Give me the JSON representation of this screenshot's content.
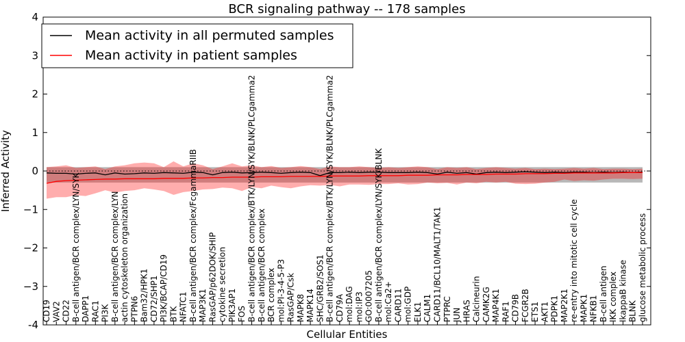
{
  "chart_data": {
    "type": "line",
    "title": "BCR signaling pathway -- 178 samples",
    "xlabel": "Cellular Entities",
    "ylabel": "Inferred Activity",
    "ylim": [
      -4,
      4
    ],
    "yticks": [
      "-4",
      "−3",
      "−2",
      "−1",
      "0",
      "1",
      "2",
      "3",
      "4"
    ],
    "grid": false,
    "legend": {
      "placement": "top-left",
      "entries": [
        {
          "label": "Mean activity in all permuted samples",
          "color": "#000000"
        },
        {
          "label": "Mean activity in patient samples",
          "color": "#ff0000"
        }
      ]
    },
    "categories": [
      "CD19",
      "VAV2",
      "CD22",
      "B-cell antigen/BCR complex/LYN/SYK",
      "DAPP1",
      "RAC1",
      "PI3K",
      "B-cell antigen/BCR complex/LYN",
      "actin cytoskeleton organization",
      "PTPN6",
      "Bam32/HPK1",
      "CD72/SHP1",
      "PI3K/BCAP/CD19",
      "BTK",
      "NFATC1",
      "B-cell antigen/BCR complex/FcgammaRIIB",
      "MAP3K1",
      "RasGAP/p62DOK/SHIP",
      "cytokine secretion",
      "PIK3AP1",
      "FOS",
      "B-cell antigen/BCR complex/BTK/LYN/SYK/BLNK/PLCgamma2",
      "B-cell antigen/BCR complex",
      "BCR complex",
      "mol:PI-3-4-5-P3",
      "RasGAP/Csk",
      "MAPK8",
      "MAPK14",
      "SHC/GRB2/SOS1",
      "B-cell antigen/BCR complex/BTK/LYN/SYK/BLNK/PLCgamma2",
      "CD79A",
      "mol:DAG",
      "mol:IP3",
      "GO:0007205",
      "B-cell antigen/BCR complex/LYN/SYK/BLNK",
      "mol:Ca2+",
      "CARD11",
      "mol:GDP",
      "ELK1",
      "CALM1",
      "CARD11/BCL10/MALT1/TAK1",
      "PTPRC",
      "JUN",
      "HRAS",
      "Calcineurin",
      "CAMK2G",
      "MAP4K1",
      "RAF1",
      "CD79B",
      "FCGR2B",
      "ETS1",
      "AKT1",
      "PDPK1",
      "MAP2K1",
      "re-entry into mitotic cell cycle",
      "MAPK1",
      "NFKB1",
      "B-cell antigen",
      "IKK complex",
      "IkappaB kinase",
      "BLNK",
      "glucose metabolic process"
    ],
    "series": [
      {
        "name": "Mean activity in all permuted samples",
        "color": "#000000",
        "values": [
          -0.05,
          -0.06,
          -0.06,
          -0.08,
          -0.06,
          -0.05,
          -0.1,
          -0.05,
          -0.08,
          -0.07,
          -0.05,
          -0.06,
          -0.04,
          -0.05,
          -0.06,
          -0.03,
          -0.04,
          -0.1,
          -0.04,
          -0.03,
          -0.05,
          -0.04,
          -0.03,
          -0.04,
          -0.06,
          -0.04,
          -0.03,
          -0.04,
          -0.12,
          -0.04,
          -0.04,
          -0.03,
          -0.04,
          -0.03,
          -0.03,
          -0.04,
          -0.04,
          -0.04,
          -0.03,
          -0.04,
          -0.08,
          -0.03,
          -0.06,
          -0.04,
          -0.08,
          -0.04,
          -0.03,
          -0.04,
          -0.03,
          -0.02,
          -0.03,
          -0.04,
          -0.03,
          -0.04,
          -0.03,
          -0.03,
          -0.04,
          -0.03,
          -0.04,
          -0.03,
          -0.04,
          -0.03
        ],
        "band_low": [
          -0.3,
          -0.3,
          -0.3,
          -0.3,
          -0.3,
          -0.3,
          -0.3,
          -0.3,
          -0.3,
          -0.3,
          -0.3,
          -0.3,
          -0.3,
          -0.3,
          -0.3,
          -0.3,
          -0.3,
          -0.3,
          -0.3,
          -0.3,
          -0.3,
          -0.3,
          -0.3,
          -0.3,
          -0.3,
          -0.3,
          -0.3,
          -0.3,
          -0.3,
          -0.3,
          -0.3,
          -0.3,
          -0.3,
          -0.3,
          -0.3,
          -0.3,
          -0.3,
          -0.3,
          -0.3,
          -0.3,
          -0.3,
          -0.3,
          -0.3,
          -0.3,
          -0.3,
          -0.3,
          -0.3,
          -0.3,
          -0.3,
          -0.3,
          -0.3,
          -0.3,
          -0.3,
          -0.3,
          -0.3,
          -0.3,
          -0.3,
          -0.3,
          -0.3,
          -0.3,
          -0.3,
          -0.3
        ],
        "band_high": [
          0.1,
          0.1,
          0.1,
          0.1,
          0.1,
          0.1,
          0.1,
          0.1,
          0.1,
          0.1,
          0.1,
          0.1,
          0.1,
          0.1,
          0.1,
          0.1,
          0.1,
          0.1,
          0.1,
          0.1,
          0.1,
          0.1,
          0.1,
          0.1,
          0.1,
          0.1,
          0.1,
          0.1,
          0.1,
          0.1,
          0.1,
          0.1,
          0.1,
          0.1,
          0.1,
          0.1,
          0.1,
          0.1,
          0.1,
          0.1,
          0.1,
          0.1,
          0.1,
          0.1,
          0.1,
          0.1,
          0.1,
          0.1,
          0.1,
          0.1,
          0.1,
          0.1,
          0.1,
          0.1,
          0.1,
          0.1,
          0.1,
          0.1,
          0.1,
          0.1,
          0.1,
          0.1
        ]
      },
      {
        "name": "Mean activity in patient samples",
        "color": "#ff0000",
        "values": [
          -0.32,
          -0.27,
          -0.25,
          -0.24,
          -0.23,
          -0.22,
          -0.21,
          -0.21,
          -0.2,
          -0.2,
          -0.2,
          -0.2,
          -0.19,
          -0.19,
          -0.19,
          -0.18,
          -0.18,
          -0.17,
          -0.17,
          -0.16,
          -0.16,
          -0.16,
          -0.15,
          -0.15,
          -0.15,
          -0.14,
          -0.14,
          -0.14,
          -0.14,
          -0.13,
          -0.13,
          -0.13,
          -0.13,
          -0.12,
          -0.12,
          -0.12,
          -0.12,
          -0.11,
          -0.11,
          -0.11,
          -0.1,
          -0.1,
          -0.1,
          -0.09,
          -0.09,
          -0.09,
          -0.08,
          -0.08,
          -0.08,
          -0.07,
          -0.07,
          -0.07,
          -0.06,
          -0.06,
          -0.05,
          -0.05,
          -0.05,
          -0.05,
          -0.05,
          -0.04,
          -0.04,
          -0.04
        ],
        "band_low": [
          -0.72,
          -0.68,
          -0.68,
          -0.63,
          -0.65,
          -0.58,
          -0.5,
          -0.56,
          -0.52,
          -0.5,
          -0.45,
          -0.48,
          -0.52,
          -0.62,
          -0.55,
          -0.52,
          -0.48,
          -0.47,
          -0.43,
          -0.45,
          -0.52,
          -0.42,
          -0.45,
          -0.38,
          -0.42,
          -0.45,
          -0.4,
          -0.37,
          -0.38,
          -0.36,
          -0.4,
          -0.35,
          -0.35,
          -0.36,
          -0.34,
          -0.34,
          -0.32,
          -0.35,
          -0.34,
          -0.3,
          -0.32,
          -0.31,
          -0.35,
          -0.3,
          -0.32,
          -0.28,
          -0.3,
          -0.28,
          -0.33,
          -0.34,
          -0.33,
          -0.3,
          -0.28,
          -0.22,
          -0.26,
          -0.24,
          -0.25,
          -0.22,
          -0.2,
          -0.2,
          -0.21,
          -0.2
        ],
        "band_high": [
          0.1,
          0.12,
          0.15,
          0.08,
          0.1,
          0.12,
          0.05,
          0.12,
          0.15,
          0.2,
          0.22,
          0.2,
          0.1,
          0.25,
          0.12,
          0.2,
          0.15,
          0.05,
          0.12,
          0.2,
          0.12,
          0.15,
          0.1,
          0.13,
          0.08,
          0.1,
          0.13,
          0.1,
          0.05,
          0.12,
          0.1,
          0.1,
          0.12,
          0.1,
          0.08,
          0.1,
          0.08,
          0.1,
          0.12,
          0.1,
          0.05,
          0.1,
          0.08,
          0.1,
          0.05,
          0.08,
          0.1,
          0.08,
          0.06,
          0.08,
          0.05,
          0.06,
          0.05,
          0.06,
          0.08,
          0.06,
          0.08,
          0.05,
          0.06,
          0.06,
          0.05,
          0.06
        ]
      }
    ]
  }
}
